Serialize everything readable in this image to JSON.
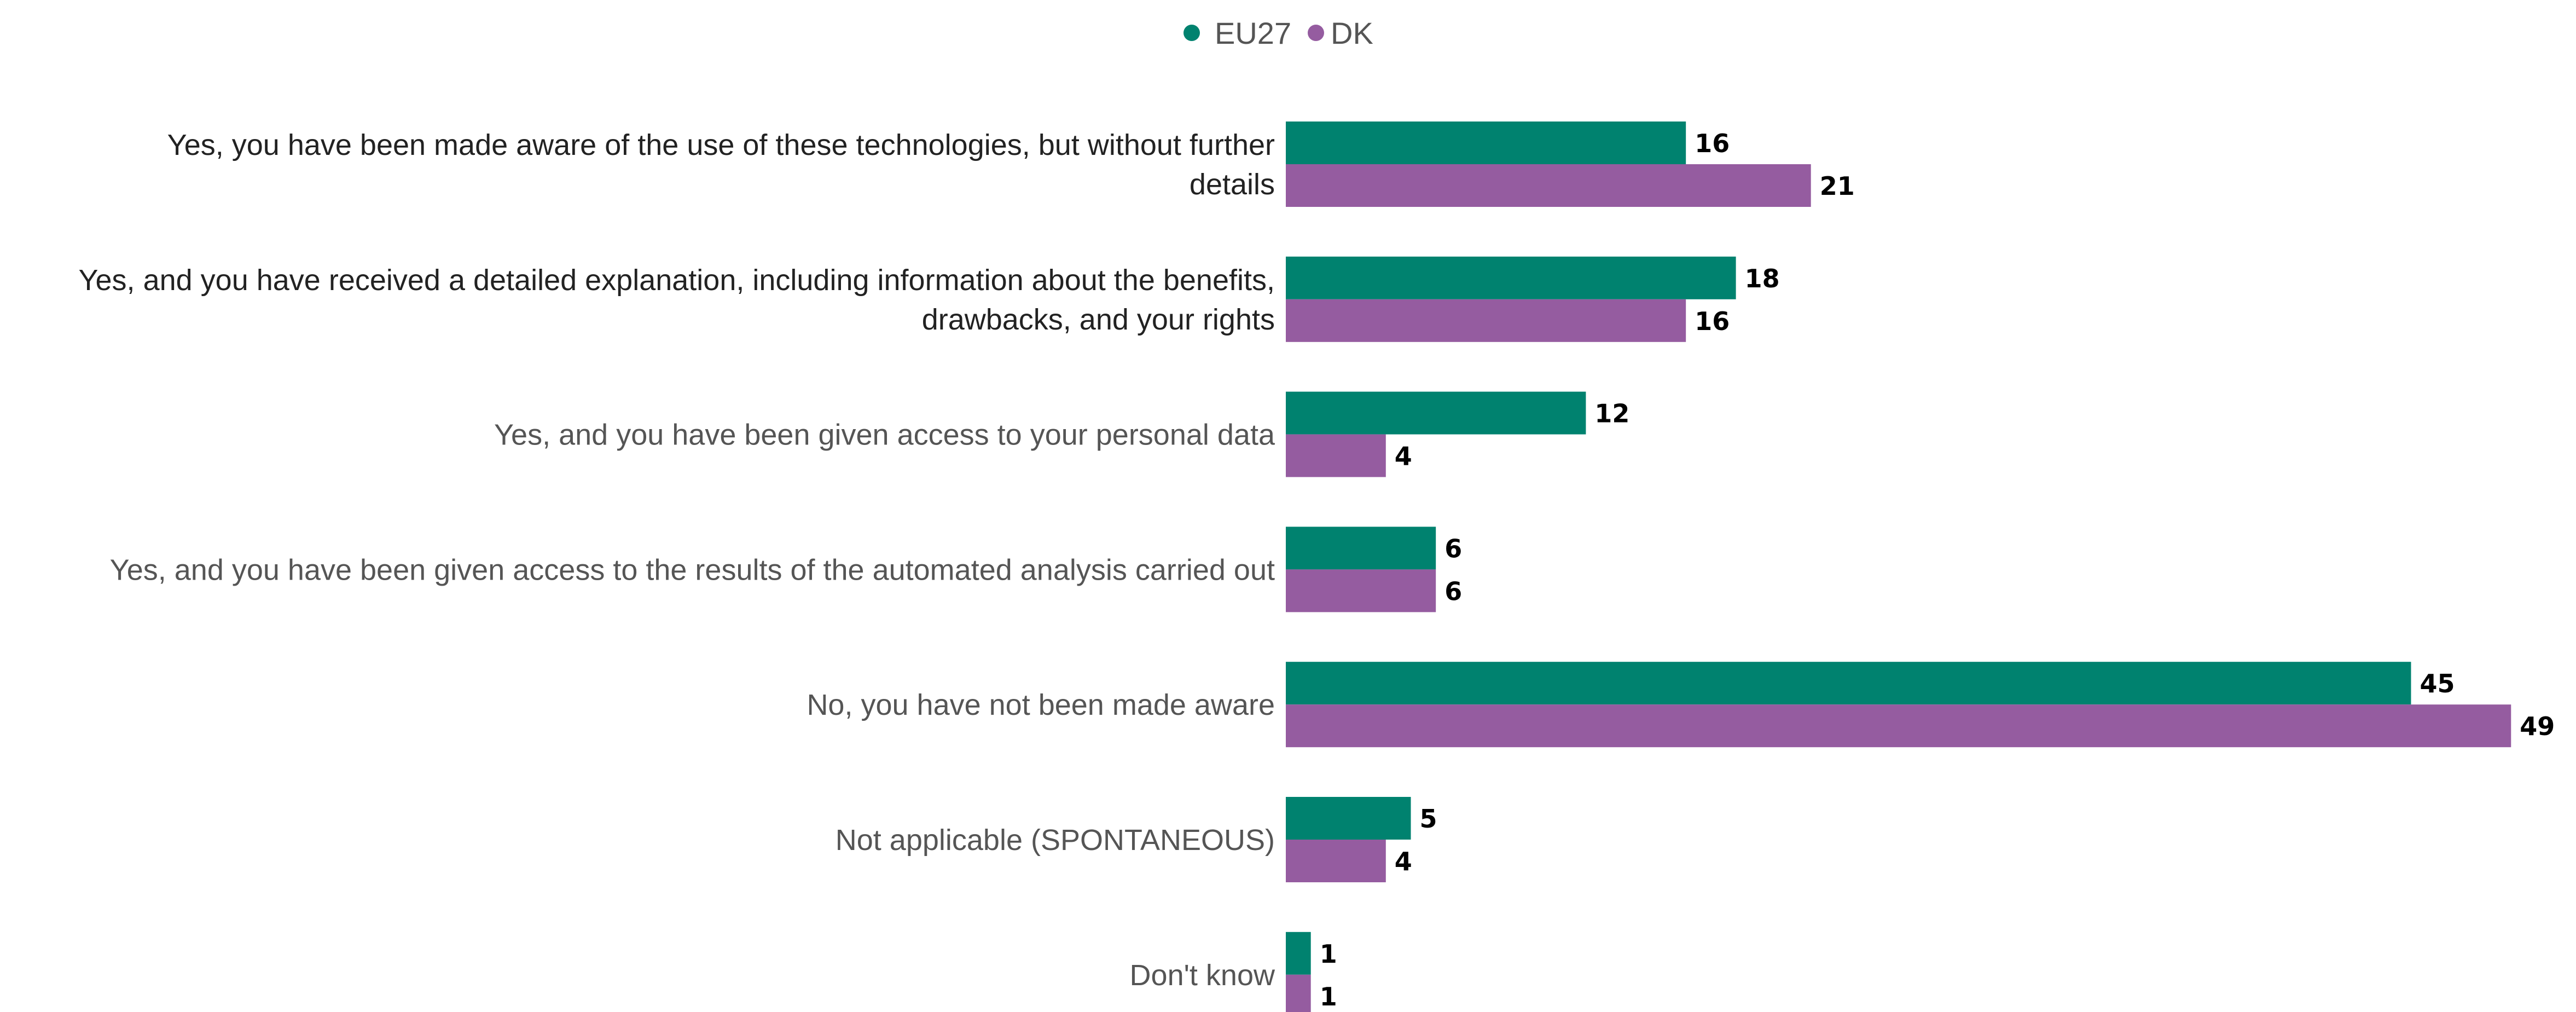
{
  "chart_data": {
    "type": "bar",
    "orientation": "horizontal",
    "legend_position": "top-center",
    "grid": false,
    "xlim": [
      0,
      49
    ],
    "categories": [
      {
        "lines": [
          "Yes, you have been made aware of the use of these technologies, but without further",
          "details"
        ],
        "color": "#222222"
      },
      {
        "lines": [
          "Yes, and you have received a detailed explanation, including information about the benefits,",
          "drawbacks, and your rights"
        ],
        "color": "#222222"
      },
      {
        "lines": [
          "Yes, and you have been given access to your personal data"
        ],
        "color": "#555555"
      },
      {
        "lines": [
          "Yes, and you have been given access to the results of the automated analysis carried out"
        ],
        "color": "#555555"
      },
      {
        "lines": [
          "No, you have not been made aware"
        ],
        "color": "#555555"
      },
      {
        "lines": [
          "Not applicable (SPONTANEOUS)"
        ],
        "color": "#555555"
      },
      {
        "lines": [
          "Don't know"
        ],
        "color": "#555555"
      }
    ],
    "series": [
      {
        "name": "EU27",
        "color": "#00826f",
        "values": [
          16,
          18,
          12,
          6,
          45,
          5,
          1
        ]
      },
      {
        "name": "DK",
        "color": "#955ca0",
        "values": [
          21,
          16,
          4,
          6,
          49,
          4,
          1
        ]
      }
    ]
  }
}
